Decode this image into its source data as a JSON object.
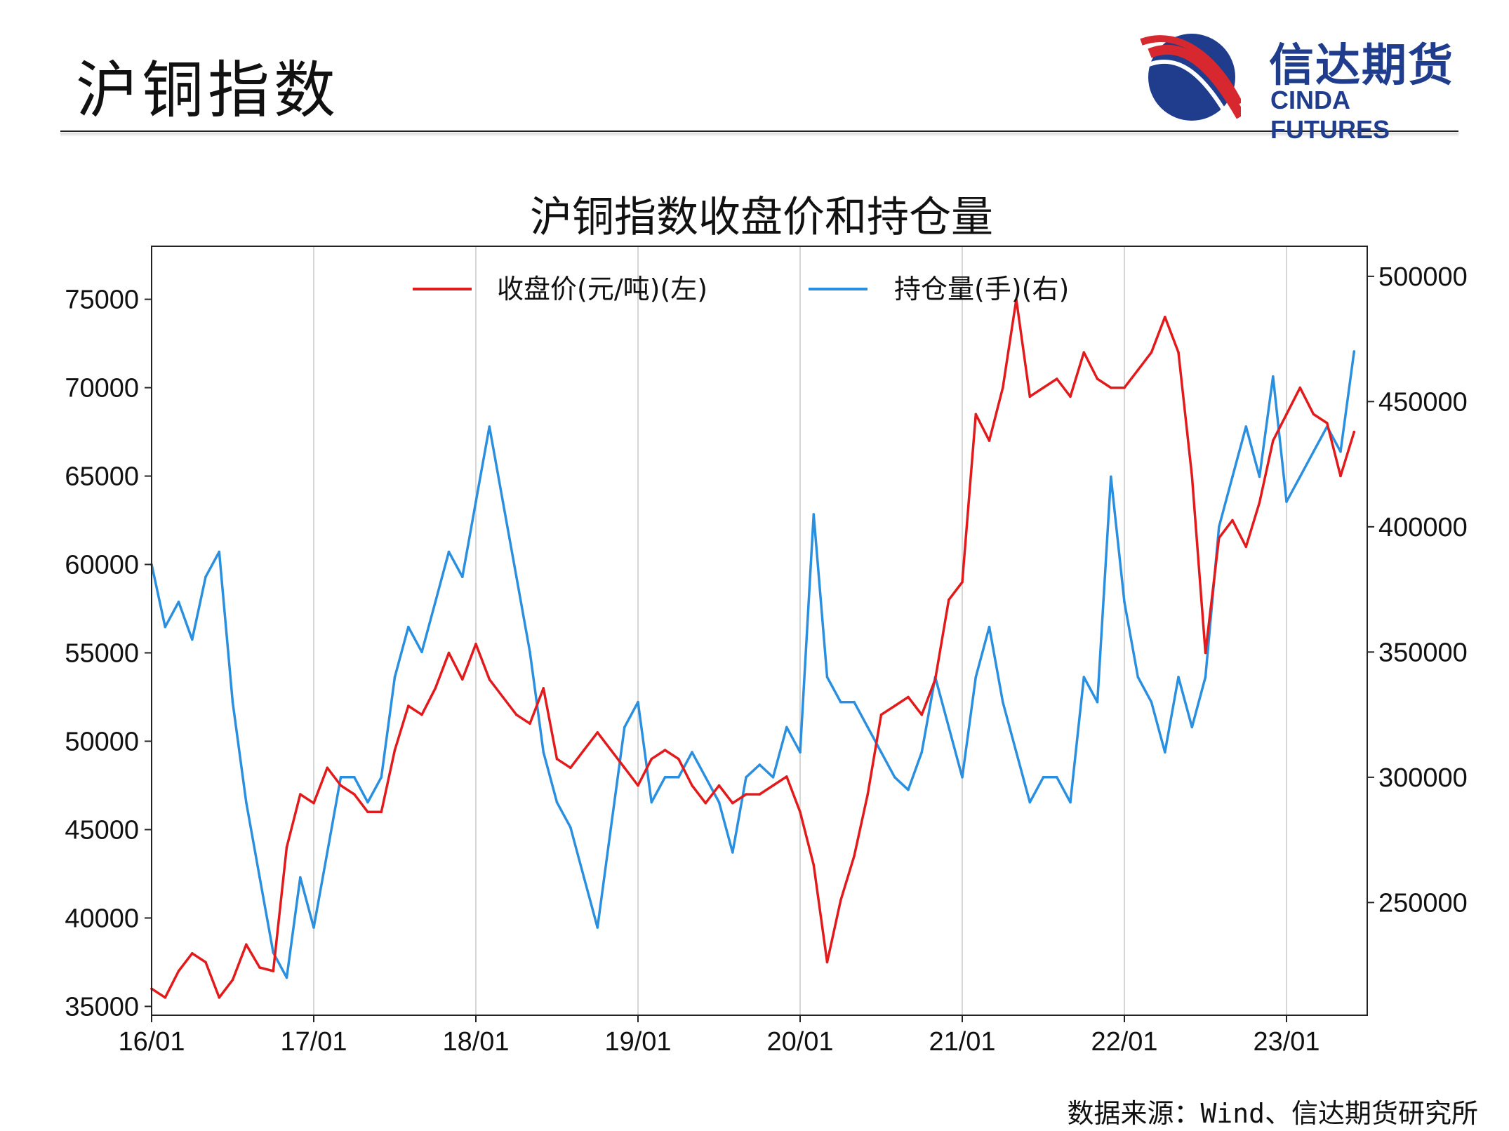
{
  "header": {
    "title": "沪铜指数",
    "logo_cn": "信达期货",
    "logo_en": "CINDA FUTURES"
  },
  "colors": {
    "price": "#e31a1c",
    "open_interest": "#2b8fe0",
    "logo_red": "#d7282f",
    "logo_blue": "#1f3d8c"
  },
  "chart_data": {
    "type": "line",
    "title": "沪铜指数收盘价和持仓量",
    "x_ticks": [
      "16/01",
      "17/01",
      "18/01",
      "19/01",
      "20/01",
      "21/01",
      "22/01",
      "23/01"
    ],
    "y_left": {
      "ticks": [
        35000,
        40000,
        45000,
        50000,
        55000,
        60000,
        65000,
        70000,
        75000
      ],
      "range": [
        34500,
        78000
      ]
    },
    "y_right": {
      "ticks": [
        250000,
        300000,
        350000,
        400000,
        450000,
        500000
      ],
      "range": [
        205000,
        512000
      ]
    },
    "grid": "vertical",
    "legend_position": "top-center",
    "series": [
      {
        "name": "收盘价(元/吨)(左)",
        "axis": "left",
        "x": [
          "2016-01",
          "2016-02",
          "2016-03",
          "2016-04",
          "2016-05",
          "2016-06",
          "2016-07",
          "2016-08",
          "2016-09",
          "2016-10",
          "2016-11",
          "2016-12",
          "2017-01",
          "2017-02",
          "2017-03",
          "2017-04",
          "2017-05",
          "2017-06",
          "2017-07",
          "2017-08",
          "2017-09",
          "2017-10",
          "2017-11",
          "2017-12",
          "2018-01",
          "2018-02",
          "2018-03",
          "2018-04",
          "2018-05",
          "2018-06",
          "2018-07",
          "2018-08",
          "2018-09",
          "2018-10",
          "2018-11",
          "2018-12",
          "2019-01",
          "2019-02",
          "2019-03",
          "2019-04",
          "2019-05",
          "2019-06",
          "2019-07",
          "2019-08",
          "2019-09",
          "2019-10",
          "2019-11",
          "2019-12",
          "2020-01",
          "2020-02",
          "2020-03",
          "2020-04",
          "2020-05",
          "2020-06",
          "2020-07",
          "2020-08",
          "2020-09",
          "2020-10",
          "2020-11",
          "2020-12",
          "2021-01",
          "2021-02",
          "2021-03",
          "2021-04",
          "2021-05",
          "2021-06",
          "2021-07",
          "2021-08",
          "2021-09",
          "2021-10",
          "2021-11",
          "2021-12",
          "2022-01",
          "2022-02",
          "2022-03",
          "2022-04",
          "2022-05",
          "2022-06",
          "2022-07",
          "2022-08",
          "2022-09",
          "2022-10",
          "2022-11",
          "2022-12",
          "2023-01",
          "2023-02",
          "2023-03",
          "2023-04",
          "2023-05",
          "2023-06"
        ],
        "values": [
          36000,
          35500,
          37000,
          38000,
          37500,
          35500,
          36500,
          38500,
          37200,
          37000,
          44000,
          47000,
          46500,
          48500,
          47500,
          47000,
          46000,
          46000,
          49500,
          52000,
          51500,
          53000,
          55000,
          53500,
          55500,
          53500,
          52500,
          51500,
          51000,
          53000,
          49000,
          48500,
          49500,
          50500,
          49500,
          48500,
          47500,
          49000,
          49500,
          49000,
          47500,
          46500,
          47500,
          46500,
          47000,
          47000,
          47500,
          48000,
          46000,
          43000,
          37500,
          41000,
          43500,
          47000,
          51500,
          52000,
          52500,
          51500,
          53500,
          58000,
          59000,
          68500,
          67000,
          70000,
          75000,
          69500,
          70000,
          70500,
          69500,
          72000,
          70500,
          70000,
          70000,
          71000,
          72000,
          74000,
          72000,
          65000,
          55000,
          61500,
          62500,
          61000,
          63500,
          67000,
          68500,
          70000,
          68500,
          68000,
          65000,
          67500
        ]
      },
      {
        "name": "持仓量(手)(右)",
        "axis": "right",
        "x": [
          "2016-01",
          "2016-02",
          "2016-03",
          "2016-04",
          "2016-05",
          "2016-06",
          "2016-07",
          "2016-08",
          "2016-09",
          "2016-10",
          "2016-11",
          "2016-12",
          "2017-01",
          "2017-02",
          "2017-03",
          "2017-04",
          "2017-05",
          "2017-06",
          "2017-07",
          "2017-08",
          "2017-09",
          "2017-10",
          "2017-11",
          "2017-12",
          "2018-01",
          "2018-02",
          "2018-03",
          "2018-04",
          "2018-05",
          "2018-06",
          "2018-07",
          "2018-08",
          "2018-09",
          "2018-10",
          "2018-11",
          "2018-12",
          "2019-01",
          "2019-02",
          "2019-03",
          "2019-04",
          "2019-05",
          "2019-06",
          "2019-07",
          "2019-08",
          "2019-09",
          "2019-10",
          "2019-11",
          "2019-12",
          "2020-01",
          "2020-02",
          "2020-03",
          "2020-04",
          "2020-05",
          "2020-06",
          "2020-07",
          "2020-08",
          "2020-09",
          "2020-10",
          "2020-11",
          "2020-12",
          "2021-01",
          "2021-02",
          "2021-03",
          "2021-04",
          "2021-05",
          "2021-06",
          "2021-07",
          "2021-08",
          "2021-09",
          "2021-10",
          "2021-11",
          "2021-12",
          "2022-01",
          "2022-02",
          "2022-03",
          "2022-04",
          "2022-05",
          "2022-06",
          "2022-07",
          "2022-08",
          "2022-09",
          "2022-10",
          "2022-11",
          "2022-12",
          "2023-01",
          "2023-02",
          "2023-03",
          "2023-04",
          "2023-05",
          "2023-06"
        ],
        "values": [
          385000,
          360000,
          370000,
          355000,
          380000,
          390000,
          330000,
          290000,
          260000,
          230000,
          220000,
          260000,
          240000,
          270000,
          300000,
          300000,
          290000,
          300000,
          340000,
          360000,
          350000,
          370000,
          390000,
          380000,
          410000,
          440000,
          410000,
          380000,
          350000,
          310000,
          290000,
          280000,
          260000,
          240000,
          280000,
          320000,
          330000,
          290000,
          300000,
          300000,
          310000,
          300000,
          290000,
          270000,
          300000,
          305000,
          300000,
          320000,
          310000,
          405000,
          340000,
          330000,
          330000,
          320000,
          310000,
          300000,
          295000,
          310000,
          340000,
          320000,
          300000,
          340000,
          360000,
          330000,
          310000,
          290000,
          300000,
          300000,
          290000,
          340000,
          330000,
          420000,
          370000,
          340000,
          330000,
          310000,
          340000,
          320000,
          340000,
          400000,
          420000,
          440000,
          420000,
          460000,
          410000,
          420000,
          430000,
          440000,
          430000,
          470000
        ]
      }
    ]
  },
  "footer": {
    "source": "数据来源：Wind、信达期货研究所"
  }
}
